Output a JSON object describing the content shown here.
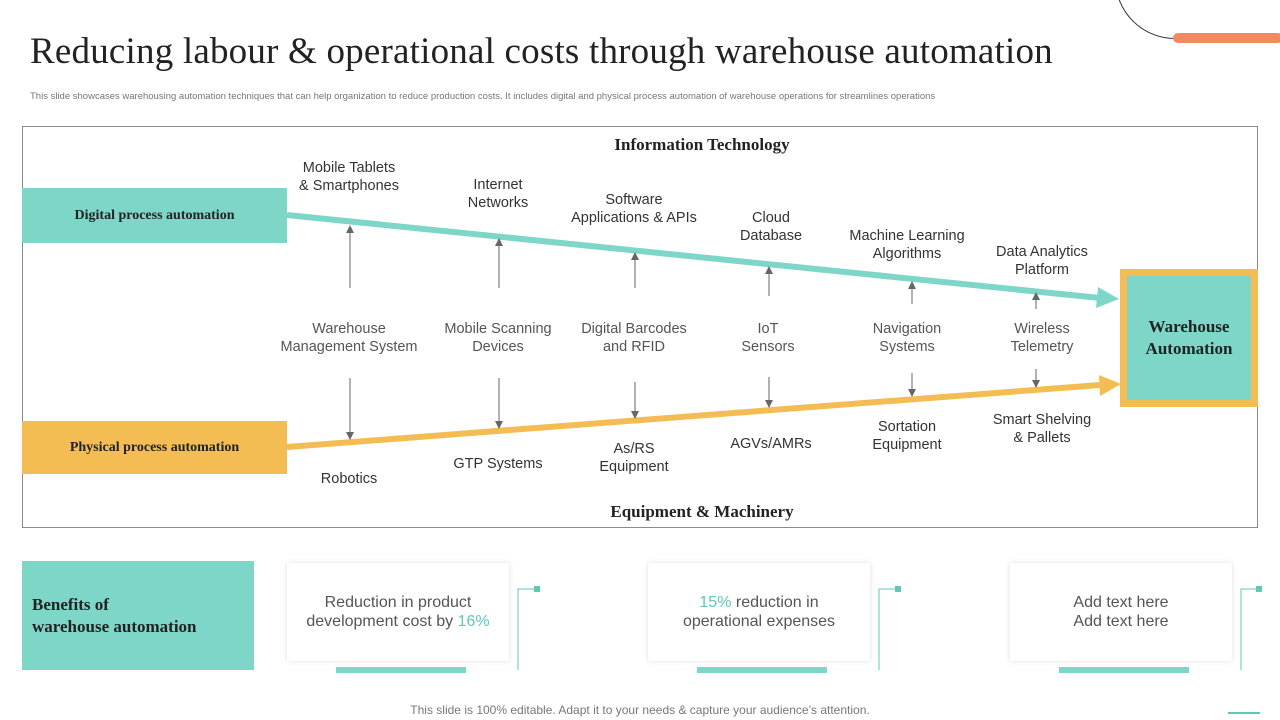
{
  "title": "Reducing labour & operational costs through warehouse automation",
  "subtitle": "This slide showcases warehousing automation techniques that can help organization to reduce production costs. It includes digital and physical process automation of warehouse operations for streamlines operations",
  "diagram": {
    "top_heading": "Information Technology",
    "bottom_heading": "Equipment & Machinery",
    "digital_label": "Digital process automation",
    "physical_label": "Physical process automation",
    "target_line1": "Warehouse",
    "target_line2": "Automation",
    "top_items": [
      [
        "Mobile Tablets",
        "& Smartphones"
      ],
      [
        "Internet",
        "Networks"
      ],
      [
        "Software",
        "Applications & APIs"
      ],
      [
        "Cloud",
        "Database"
      ],
      [
        "Machine Learning",
        "Algorithms"
      ],
      [
        "Data Analytics",
        "Platform"
      ]
    ],
    "mid_items": [
      [
        "Warehouse",
        "Management System"
      ],
      [
        "Mobile Scanning",
        "Devices"
      ],
      [
        "Digital Barcodes",
        "and RFID"
      ],
      [
        "IoT",
        "Sensors"
      ],
      [
        "Navigation",
        "Systems"
      ],
      [
        "Wireless",
        "Telemetry"
      ]
    ],
    "bottom_items": [
      [
        "Robotics",
        ""
      ],
      [
        "GTP Systems",
        ""
      ],
      [
        "As/RS",
        "Equipment"
      ],
      [
        "AGVs/AMRs",
        ""
      ],
      [
        "Sortation",
        "Equipment"
      ],
      [
        "Smart Shelving",
        "& Pallets"
      ]
    ]
  },
  "benefits": {
    "heading_line1": "Benefits of",
    "heading_line2": "warehouse automation",
    "card1": {
      "text_a": "Reduction in product",
      "text_b": "development cost by ",
      "highlight": "16%"
    },
    "card2": {
      "highlight": "15%",
      "text_a": " reduction in",
      "text_b": "operational expenses"
    },
    "card3": {
      "text_a": "Add text here",
      "text_b": "Add text here"
    }
  },
  "footer": "This slide is 100% editable. Adapt it to your needs & capture your audience’s attention.",
  "colors": {
    "teal": "#7ed6c8",
    "yellow": "#f4bd54",
    "accent_orange": "#f08a60"
  }
}
